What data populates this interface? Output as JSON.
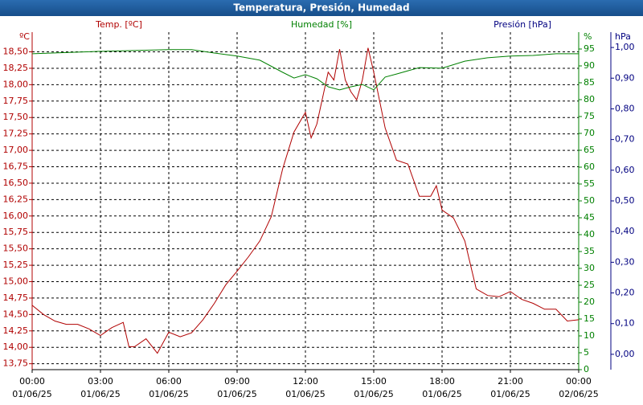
{
  "chart_data": {
    "type": "line",
    "title": "Temperatura, Presión, Humedad",
    "axis_labels": {
      "temp": "Temp. [ºC]",
      "hum": "Humedad [%]",
      "pres": "Presión [hPa]"
    },
    "axis_units": {
      "temp": "ºC",
      "hum": "%",
      "pres": "hPa"
    },
    "xlim": [
      0,
      24
    ],
    "xticks": [
      {
        "value": 0,
        "label": "00:00",
        "date": "01/06/25"
      },
      {
        "value": 3,
        "label": "03:00",
        "date": "01/06/25"
      },
      {
        "value": 6,
        "label": "06:00",
        "date": "01/06/25"
      },
      {
        "value": 9,
        "label": "09:00",
        "date": "01/06/25"
      },
      {
        "value": 12,
        "label": "12:00",
        "date": "01/06/25"
      },
      {
        "value": 15,
        "label": "15:00",
        "date": "01/06/25"
      },
      {
        "value": 18,
        "label": "18:00",
        "date": "01/06/25"
      },
      {
        "value": 21,
        "label": "21:00",
        "date": "01/06/25"
      },
      {
        "value": 24,
        "label": "00:00",
        "date": "02/06/25"
      }
    ],
    "ylim": [
      13.66,
      18.8
    ],
    "yticks": [
      {
        "value": 13.75,
        "label": "13,75"
      },
      {
        "value": 14,
        "label": "14,00"
      },
      {
        "value": 14.25,
        "label": "14,25"
      },
      {
        "value": 14.5,
        "label": "14,50"
      },
      {
        "value": 14.75,
        "label": "14,75"
      },
      {
        "value": 15,
        "label": "15,00"
      },
      {
        "value": 15.25,
        "label": "15,25"
      },
      {
        "value": 15.5,
        "label": "15,50"
      },
      {
        "value": 15.75,
        "label": "15,75"
      },
      {
        "value": 16,
        "label": "16,00"
      },
      {
        "value": 16.25,
        "label": "16,25"
      },
      {
        "value": 16.5,
        "label": "16,50"
      },
      {
        "value": 16.75,
        "label": "16,75"
      },
      {
        "value": 17,
        "label": "17,00"
      },
      {
        "value": 17.25,
        "label": "17,25"
      },
      {
        "value": 17.5,
        "label": "17,50"
      },
      {
        "value": 17.75,
        "label": "17,75"
      },
      {
        "value": 18,
        "label": "18,00"
      },
      {
        "value": 18.25,
        "label": "18,25"
      },
      {
        "value": 18.5,
        "label": "18,50"
      }
    ],
    "y2lim": [
      0,
      100
    ],
    "y2ticks": [
      0,
      5,
      10,
      15,
      20,
      25,
      30,
      35,
      40,
      45,
      50,
      55,
      60,
      65,
      70,
      75,
      80,
      85,
      90,
      95
    ],
    "y3lim": [
      -0.05,
      1.05
    ],
    "y3ticks": [
      {
        "value": 0,
        "label": "0,00"
      },
      {
        "value": 0.1,
        "label": "0,10"
      },
      {
        "value": 0.2,
        "label": "0,20"
      },
      {
        "value": 0.3,
        "label": "0,30"
      },
      {
        "value": 0.4,
        "label": "0,40"
      },
      {
        "value": 0.5,
        "label": "0,50"
      },
      {
        "value": 0.6,
        "label": "0,60"
      },
      {
        "value": 0.7,
        "label": "0,70"
      },
      {
        "value": 0.8,
        "label": "0,80"
      },
      {
        "value": 0.9,
        "label": "0,90"
      },
      {
        "value": 1,
        "label": "1,00"
      }
    ],
    "grid": true,
    "axis_colors": {
      "temp": "#b00000",
      "hum": "#008000",
      "pres": "#000080"
    },
    "series": [
      {
        "name": "Temperatura",
        "color": "#b00000",
        "axis": "y",
        "x": [
          0,
          0.5,
          1,
          1.5,
          2,
          2.5,
          3,
          3.5,
          4,
          4.25,
          4.5,
          5,
          5.5,
          6,
          6.5,
          7,
          7.5,
          8,
          8.5,
          9,
          9.5,
          10,
          10.5,
          11,
          11.5,
          12,
          12.25,
          12.5,
          13,
          13.25,
          13.5,
          13.75,
          14,
          14.25,
          14.5,
          14.75,
          15,
          15.5,
          16,
          16.5,
          17,
          17.5,
          17.75,
          18,
          18.5,
          19,
          19.5,
          20,
          20.5,
          21,
          21.5,
          22,
          22.5,
          23,
          23.5,
          24
        ],
        "values": [
          14.64,
          14.5,
          14.4,
          14.35,
          14.35,
          14.28,
          14.18,
          14.3,
          14.38,
          14.01,
          14.01,
          14.13,
          13.91,
          14.23,
          14.16,
          14.22,
          14.42,
          14.67,
          14.95,
          15.16,
          15.38,
          15.62,
          15.99,
          16.72,
          17.28,
          17.58,
          17.19,
          17.4,
          18.19,
          18.07,
          18.54,
          18.07,
          17.89,
          17.77,
          18.07,
          18.56,
          18.19,
          17.34,
          16.85,
          16.79,
          16.3,
          16.3,
          16.46,
          16.09,
          15.97,
          15.62,
          14.89,
          14.79,
          14.77,
          14.85,
          14.73,
          14.67,
          14.58,
          14.58,
          14.4,
          14.42
        ]
      },
      {
        "name": "Humedad",
        "color": "#008000",
        "axis": "y2",
        "x": [
          0,
          3,
          6,
          7,
          8,
          9,
          10,
          11,
          11.5,
          12,
          12.5,
          13,
          13.5,
          14,
          14.5,
          15,
          15.5,
          16,
          17,
          18,
          19,
          20,
          21,
          22,
          23,
          24
        ],
        "values": [
          93.6,
          94.3,
          94.8,
          94.8,
          93.8,
          92.9,
          91.7,
          88.1,
          86.4,
          87.4,
          86.2,
          83.8,
          82.9,
          83.8,
          84.5,
          82.9,
          86.7,
          87.6,
          89.5,
          89.3,
          91.4,
          92.4,
          92.9,
          93.1,
          93.6,
          93.6
        ]
      }
    ]
  }
}
